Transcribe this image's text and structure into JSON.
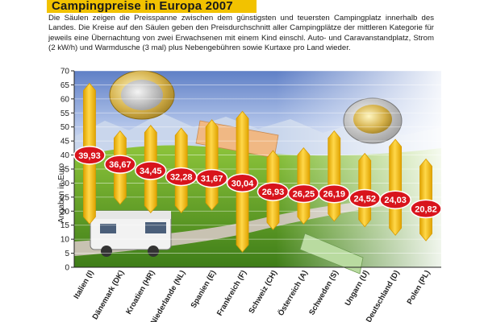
{
  "title": "Campingpreise in Europa 2007",
  "description": "Die Säulen zeigen die Preisspanne zwischen dem günstigsten und teuersten Campingplatz innerhalb des Landes. Die Kreise auf den Säulen geben den Preisdurchschnitt aller Campingplätze der mittleren Kategorie für jeweils eine Übernachtung von zwei Erwachsenen mit einem Kind einschl. Auto- und Caravanstandplatz, Strom (2 kW/h) und Warmdusche (3 mal) plus Nebengebühren sowie Kurtaxe pro Land wieder.",
  "colors": {
    "title_bg": "#f2c200",
    "bar": "#f5c400",
    "bar_edge": "#d79a00",
    "marker": "#d8141c",
    "sky_top": "#6f8fcf",
    "grass": "#6fae2a"
  },
  "chart_data": {
    "type": "bar",
    "subtype": "range-with-average",
    "ylabel": "Angaben in Euro",
    "xlabel": "",
    "ylim": [
      0,
      70
    ],
    "yticks": [
      0,
      5,
      10,
      15,
      20,
      25,
      30,
      35,
      40,
      45,
      50,
      55,
      60,
      65,
      70
    ],
    "grid": true,
    "categories": [
      "Italien (I)",
      "Dänemark (DK)",
      "Kroatien (HR)",
      "Niederlande (NL)",
      "Spanien (E)",
      "Frankreich (F)",
      "Schweiz (CH)",
      "Österreich (A)",
      "Schweden (S)",
      "Ungarn (U)",
      "Deutschland (D)",
      "Polen (PL)"
    ],
    "average": [
      39.93,
      36.67,
      34.45,
      32.28,
      31.67,
      30.04,
      26.93,
      26.25,
      26.19,
      24.52,
      24.03,
      20.82
    ],
    "average_labels": [
      "39,93",
      "36,67",
      "34,45",
      "32,28",
      "31,67",
      "30,04",
      "26,93",
      "26,25",
      "26,19",
      "24,52",
      "24,03",
      "20,82"
    ],
    "min": [
      18,
      25,
      22,
      22,
      23,
      8,
      16,
      18,
      19,
      17,
      14,
      12
    ],
    "max": [
      63,
      46,
      48,
      47,
      50,
      53,
      39,
      40,
      46,
      38,
      43,
      36
    ]
  }
}
